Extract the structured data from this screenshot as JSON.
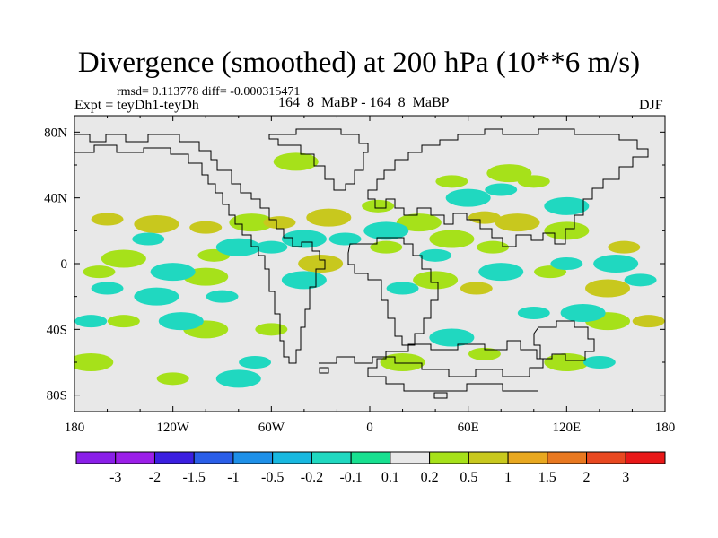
{
  "chart_data": {
    "type": "heatmap",
    "title": "Divergence (smoothed) at 200 hPa (10**6 m/s)",
    "stats_label": "rmsd= 0.113778 diff= -0.000315471",
    "expt_label": "Expt = teyDh1-teyDh",
    "models_label": "164_8_MaBP - 164_8_MaBP",
    "season": "DJF",
    "xaxis": {
      "range": [
        -180,
        180
      ],
      "ticks": [
        -180,
        -120,
        -60,
        0,
        60,
        120,
        180
      ],
      "tick_labels": [
        "180",
        "120W",
        "60W",
        "0",
        "60E",
        "120E",
        "180"
      ]
    },
    "yaxis": {
      "range": [
        -90,
        90
      ],
      "ticks": [
        80,
        40,
        0,
        -40,
        -80
      ],
      "tick_labels": [
        "80N",
        "40N",
        "0",
        "40S",
        "80S"
      ]
    },
    "colorbar": {
      "levels": [
        "-3",
        "-2",
        "-1.5",
        "-1",
        "-0.5",
        "-0.2",
        "-0.1",
        "0.1",
        "0.2",
        "0.5",
        "1",
        "1.5",
        "2",
        "3"
      ],
      "colors": [
        "#9b1fe8",
        "#3b1fe0",
        "#2a5ee8",
        "#1e90e8",
        "#18b8e0",
        "#20d8c0",
        "#18e090",
        "#e8e8e8",
        "#a6e11a",
        "#c8c81e",
        "#e8a820",
        "#e87820",
        "#e84820",
        "#e81818"
      ]
    },
    "field": [
      {
        "lon": -160,
        "lat": 27,
        "value": 0.5
      },
      {
        "lon": -130,
        "lat": 24,
        "value": 0.5
      },
      {
        "lon": -100,
        "lat": 22,
        "value": 0.5
      },
      {
        "lon": -72,
        "lat": 25,
        "value": 0.2
      },
      {
        "lon": -55,
        "lat": 25,
        "value": 0.5
      },
      {
        "lon": -25,
        "lat": 28,
        "value": 0.5
      },
      {
        "lon": 5,
        "lat": 35,
        "value": 0.2
      },
      {
        "lon": 30,
        "lat": 25,
        "value": 0.2
      },
      {
        "lon": 70,
        "lat": 28,
        "value": 0.5
      },
      {
        "lon": 90,
        "lat": 25,
        "value": 0.5
      },
      {
        "lon": 155,
        "lat": 10,
        "value": 0.5
      },
      {
        "lon": 120,
        "lat": 20,
        "value": 0.2
      },
      {
        "lon": 75,
        "lat": 10,
        "value": 0.2
      },
      {
        "lon": 50,
        "lat": 15,
        "value": 0.2
      },
      {
        "lon": 10,
        "lat": 10,
        "value": 0.2
      },
      {
        "lon": -30,
        "lat": 0,
        "value": 0.5
      },
      {
        "lon": -95,
        "lat": 5,
        "value": 0.2
      },
      {
        "lon": -150,
        "lat": 3,
        "value": 0.2
      },
      {
        "lon": -165,
        "lat": -5,
        "value": 0.2
      },
      {
        "lon": -100,
        "lat": -8,
        "value": 0.2
      },
      {
        "lon": 65,
        "lat": -15,
        "value": 0.5
      },
      {
        "lon": 40,
        "lat": -10,
        "value": 0.2
      },
      {
        "lon": 110,
        "lat": -5,
        "value": 0.2
      },
      {
        "lon": 145,
        "lat": -15,
        "value": 0.5
      },
      {
        "lon": 170,
        "lat": -35,
        "value": 0.5
      },
      {
        "lon": 145,
        "lat": -35,
        "value": 0.2
      },
      {
        "lon": -150,
        "lat": -35,
        "value": 0.2
      },
      {
        "lon": -100,
        "lat": -40,
        "value": 0.2
      },
      {
        "lon": -60,
        "lat": -40,
        "value": 0.2
      },
      {
        "lon": 20,
        "lat": -60,
        "value": 0.2
      },
      {
        "lon": 70,
        "lat": -55,
        "value": 0.2
      },
      {
        "lon": 120,
        "lat": -60,
        "value": 0.2
      },
      {
        "lon": -120,
        "lat": -70,
        "value": 0.2
      },
      {
        "lon": -170,
        "lat": -60,
        "value": 0.2
      },
      {
        "lon": 50,
        "lat": 50,
        "value": 0.2
      },
      {
        "lon": 85,
        "lat": 55,
        "value": 0.2
      },
      {
        "lon": 100,
        "lat": 50,
        "value": 0.2
      },
      {
        "lon": -45,
        "lat": 62,
        "value": 0.2
      },
      {
        "lon": -135,
        "lat": 15,
        "value": -0.2
      },
      {
        "lon": -80,
        "lat": 10,
        "value": -0.2
      },
      {
        "lon": -60,
        "lat": 10,
        "value": -0.2
      },
      {
        "lon": -40,
        "lat": 15,
        "value": -0.2
      },
      {
        "lon": -15,
        "lat": 15,
        "value": -0.2
      },
      {
        "lon": 10,
        "lat": 20,
        "value": -0.2
      },
      {
        "lon": 40,
        "lat": 5,
        "value": -0.2
      },
      {
        "lon": 60,
        "lat": 40,
        "value": -0.2
      },
      {
        "lon": 80,
        "lat": 45,
        "value": -0.2
      },
      {
        "lon": 120,
        "lat": 35,
        "value": -0.2
      },
      {
        "lon": 120,
        "lat": 0,
        "value": -0.2
      },
      {
        "lon": 150,
        "lat": 0,
        "value": -0.2
      },
      {
        "lon": 165,
        "lat": -10,
        "value": -0.2
      },
      {
        "lon": -120,
        "lat": -5,
        "value": -0.2
      },
      {
        "lon": -160,
        "lat": -15,
        "value": -0.2
      },
      {
        "lon": -130,
        "lat": -20,
        "value": -0.2
      },
      {
        "lon": -90,
        "lat": -20,
        "value": -0.2
      },
      {
        "lon": -40,
        "lat": -10,
        "value": -0.2
      },
      {
        "lon": 20,
        "lat": -15,
        "value": -0.2
      },
      {
        "lon": 80,
        "lat": -5,
        "value": -0.2
      },
      {
        "lon": 100,
        "lat": -30,
        "value": -0.2
      },
      {
        "lon": 130,
        "lat": -30,
        "value": -0.2
      },
      {
        "lon": -170,
        "lat": -35,
        "value": -0.2
      },
      {
        "lon": -115,
        "lat": -35,
        "value": -0.2
      },
      {
        "lon": -70,
        "lat": -60,
        "value": -0.2
      },
      {
        "lon": 50,
        "lat": -45,
        "value": -0.2
      },
      {
        "lon": 140,
        "lat": -60,
        "value": -0.2
      },
      {
        "lon": -80,
        "lat": -70,
        "value": -0.2
      }
    ]
  }
}
